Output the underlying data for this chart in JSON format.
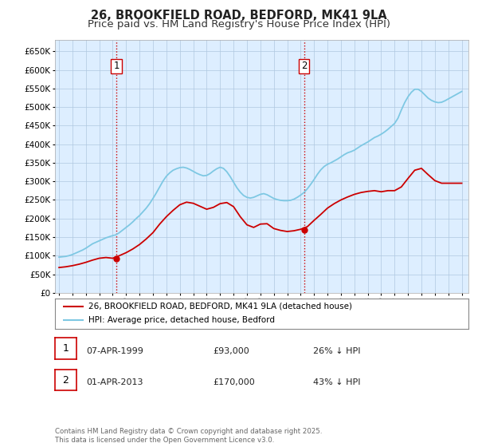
{
  "title": "26, BROOKFIELD ROAD, BEDFORD, MK41 9LA",
  "subtitle": "Price paid vs. HM Land Registry's House Price Index (HPI)",
  "title_fontsize": 10.5,
  "subtitle_fontsize": 9.5,
  "ytick_values": [
    0,
    50000,
    100000,
    150000,
    200000,
    250000,
    300000,
    350000,
    400000,
    450000,
    500000,
    550000,
    600000,
    650000
  ],
  "ylim": [
    0,
    680000
  ],
  "xlim_start": 1994.7,
  "xlim_end": 2025.5,
  "sale1_date": 1999.27,
  "sale1_price": 93000,
  "sale2_date": 2013.25,
  "sale2_price": 170000,
  "hpi_color": "#7ec8e3",
  "price_color": "#cc0000",
  "vline_color": "#cc0000",
  "chart_bg_color": "#ddeeff",
  "background_color": "#ffffff",
  "grid_color": "#b0c8e0",
  "legend1_label": "26, BROOKFIELD ROAD, BEDFORD, MK41 9LA (detached house)",
  "legend2_label": "HPI: Average price, detached house, Bedford",
  "annotation1_num": "1",
  "annotation2_num": "2",
  "annotation1_date": "07-APR-1999",
  "annotation1_price": "£93,000",
  "annotation1_hpi": "26% ↓ HPI",
  "annotation2_date": "01-APR-2013",
  "annotation2_price": "£170,000",
  "annotation2_hpi": "43% ↓ HPI",
  "footer_text": "Contains HM Land Registry data © Crown copyright and database right 2025.\nThis data is licensed under the Open Government Licence v3.0.",
  "hpi_years": [
    1995.0,
    1995.25,
    1995.5,
    1995.75,
    1996.0,
    1996.25,
    1996.5,
    1996.75,
    1997.0,
    1997.25,
    1997.5,
    1997.75,
    1998.0,
    1998.25,
    1998.5,
    1998.75,
    1999.0,
    1999.25,
    1999.5,
    1999.75,
    2000.0,
    2000.25,
    2000.5,
    2000.75,
    2001.0,
    2001.25,
    2001.5,
    2001.75,
    2002.0,
    2002.25,
    2002.5,
    2002.75,
    2003.0,
    2003.25,
    2003.5,
    2003.75,
    2004.0,
    2004.25,
    2004.5,
    2004.75,
    2005.0,
    2005.25,
    2005.5,
    2005.75,
    2006.0,
    2006.25,
    2006.5,
    2006.75,
    2007.0,
    2007.25,
    2007.5,
    2007.75,
    2008.0,
    2008.25,
    2008.5,
    2008.75,
    2009.0,
    2009.25,
    2009.5,
    2009.75,
    2010.0,
    2010.25,
    2010.5,
    2010.75,
    2011.0,
    2011.25,
    2011.5,
    2011.75,
    2012.0,
    2012.25,
    2012.5,
    2012.75,
    2013.0,
    2013.25,
    2013.5,
    2013.75,
    2014.0,
    2014.25,
    2014.5,
    2014.75,
    2015.0,
    2015.25,
    2015.5,
    2015.75,
    2016.0,
    2016.25,
    2016.5,
    2016.75,
    2017.0,
    2017.25,
    2017.5,
    2017.75,
    2018.0,
    2018.25,
    2018.5,
    2018.75,
    2019.0,
    2019.25,
    2019.5,
    2019.75,
    2020.0,
    2020.25,
    2020.5,
    2020.75,
    2021.0,
    2021.25,
    2021.5,
    2021.75,
    2022.0,
    2022.25,
    2022.5,
    2022.75,
    2023.0,
    2023.25,
    2023.5,
    2023.75,
    2024.0,
    2024.25,
    2024.5,
    2024.75,
    2025.0
  ],
  "hpi_values": [
    96000,
    97000,
    98000,
    100000,
    103000,
    107000,
    111000,
    115000,
    120000,
    126000,
    132000,
    136000,
    140000,
    144000,
    148000,
    151000,
    154000,
    156000,
    162000,
    169000,
    176000,
    183000,
    191000,
    200000,
    208000,
    218000,
    228000,
    240000,
    254000,
    269000,
    285000,
    301000,
    314000,
    323000,
    330000,
    334000,
    337000,
    338000,
    336000,
    332000,
    327000,
    322000,
    318000,
    315000,
    316000,
    321000,
    328000,
    334000,
    338000,
    335000,
    326000,
    313000,
    298000,
    283000,
    271000,
    262000,
    257000,
    255000,
    257000,
    261000,
    265000,
    267000,
    264000,
    259000,
    254000,
    251000,
    249000,
    248000,
    248000,
    249000,
    252000,
    257000,
    263000,
    270000,
    280000,
    292000,
    305000,
    319000,
    331000,
    340000,
    346000,
    350000,
    355000,
    360000,
    366000,
    372000,
    377000,
    380000,
    384000,
    390000,
    396000,
    401000,
    406000,
    412000,
    418000,
    422000,
    427000,
    433000,
    440000,
    448000,
    456000,
    470000,
    492000,
    512000,
    528000,
    540000,
    548000,
    548000,
    542000,
    533000,
    524000,
    518000,
    514000,
    512000,
    513000,
    517000,
    522000,
    527000,
    532000,
    537000,
    542000
  ],
  "price_years": [
    1995.0,
    1995.5,
    1996.0,
    1996.5,
    1997.0,
    1997.5,
    1998.0,
    1998.5,
    1999.0,
    1999.5,
    2000.0,
    2000.5,
    2001.0,
    2001.5,
    2002.0,
    2002.5,
    2003.0,
    2003.5,
    2004.0,
    2004.5,
    2005.0,
    2005.5,
    2006.0,
    2006.5,
    2007.0,
    2007.5,
    2008.0,
    2008.5,
    2009.0,
    2009.5,
    2010.0,
    2010.5,
    2011.0,
    2011.5,
    2012.0,
    2012.5,
    2013.0,
    2013.5,
    2014.0,
    2014.5,
    2015.0,
    2015.5,
    2016.0,
    2016.5,
    2017.0,
    2017.5,
    2018.0,
    2018.5,
    2019.0,
    2019.5,
    2020.0,
    2020.5,
    2021.0,
    2021.5,
    2022.0,
    2022.5,
    2023.0,
    2023.5,
    2024.0,
    2024.5,
    2025.0
  ],
  "price_values": [
    68000,
    70000,
    73000,
    77000,
    82000,
    88000,
    93000,
    95000,
    93000,
    100000,
    108000,
    118000,
    130000,
    145000,
    162000,
    185000,
    205000,
    222000,
    237000,
    244000,
    241000,
    233000,
    225000,
    230000,
    240000,
    243000,
    232000,
    205000,
    183000,
    176000,
    185000,
    186000,
    173000,
    168000,
    165000,
    167000,
    171000,
    178000,
    195000,
    211000,
    228000,
    240000,
    250000,
    258000,
    265000,
    270000,
    273000,
    275000,
    272000,
    275000,
    275000,
    285000,
    308000,
    330000,
    335000,
    318000,
    302000,
    295000,
    295000,
    295000,
    295000
  ]
}
